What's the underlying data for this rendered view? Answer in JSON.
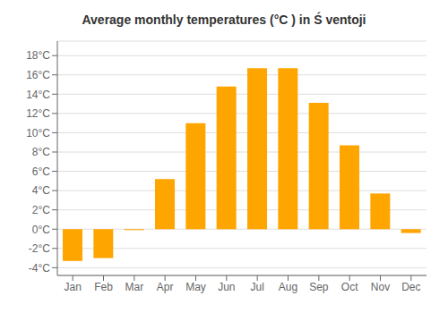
{
  "chart_data": {
    "type": "bar",
    "title": "Average monthly temperatures (°C ) in Ś ventoji",
    "categories": [
      "Jan",
      "Feb",
      "Mar",
      "Apr",
      "May",
      "Jun",
      "Jul",
      "Aug",
      "Sep",
      "Oct",
      "Nov",
      "Dec"
    ],
    "values": [
      -3.3,
      -3.0,
      -0.1,
      5.2,
      11.0,
      14.8,
      16.7,
      16.7,
      13.1,
      8.7,
      3.7,
      -0.4
    ],
    "color": "#FFA500",
    "ylim": [
      -4.8,
      19.5
    ],
    "yticks": [
      {
        "value": -4,
        "label": "-4°C"
      },
      {
        "value": -2,
        "label": "-2°C"
      },
      {
        "value": 0,
        "label": "0°C"
      },
      {
        "value": 2,
        "label": "2°C"
      },
      {
        "value": 4,
        "label": "4°C"
      },
      {
        "value": 6,
        "label": "6°C"
      },
      {
        "value": 8,
        "label": "8°C"
      },
      {
        "value": 10,
        "label": "10°C"
      },
      {
        "value": 12,
        "label": "12°C"
      },
      {
        "value": 14,
        "label": "14°C"
      },
      {
        "value": 16,
        "label": "16°C"
      },
      {
        "value": 18,
        "label": "18°C"
      }
    ],
    "grid": true
  }
}
